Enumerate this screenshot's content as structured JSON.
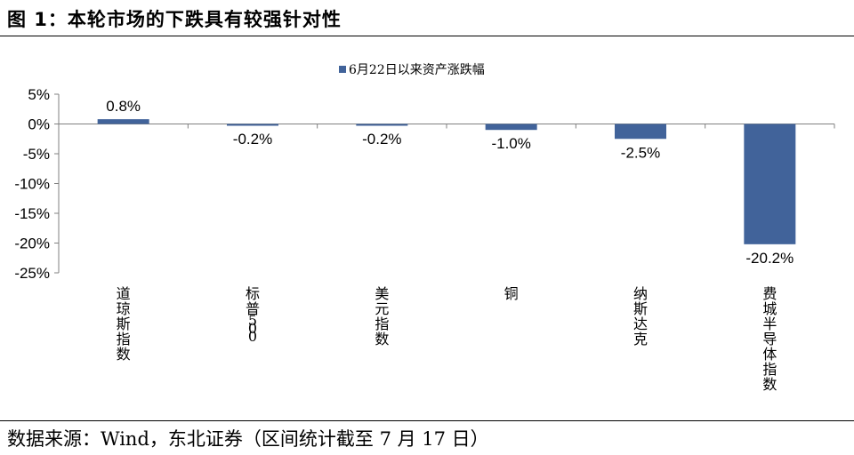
{
  "header": {
    "title": "图 1：本轮市场的下跌具有较强针对性"
  },
  "footer": {
    "source": "数据来源：Wind，东北证券（区间统计截至 7 月 17 日）"
  },
  "colors": {
    "bar": "#41639a",
    "axis": "#808080",
    "text": "#000000"
  },
  "chart_data": {
    "type": "bar",
    "title": "",
    "xlabel": "",
    "ylabel": "",
    "ylim": [
      -25,
      5
    ],
    "yticks": [
      5,
      0,
      -5,
      -10,
      -15,
      -20,
      -25
    ],
    "ytick_labels": [
      "5%",
      "0%",
      "-5%",
      "-10%",
      "-15%",
      "-20%",
      "-25%"
    ],
    "legend_position": "top-center",
    "grid": false,
    "categories": [
      "道琼斯指数",
      "标普500",
      "美元指数",
      "铜",
      "纳斯达克",
      "费城半导体指数"
    ],
    "series": [
      {
        "name": "6月22日以来资产涨跌幅",
        "values": [
          0.8,
          -0.2,
          -0.2,
          -1.0,
          -2.5,
          -20.2
        ],
        "labels": [
          "0.8%",
          "-0.2%",
          "-0.2%",
          "-1.0%",
          "-2.5%",
          "-20.2%"
        ]
      }
    ]
  }
}
